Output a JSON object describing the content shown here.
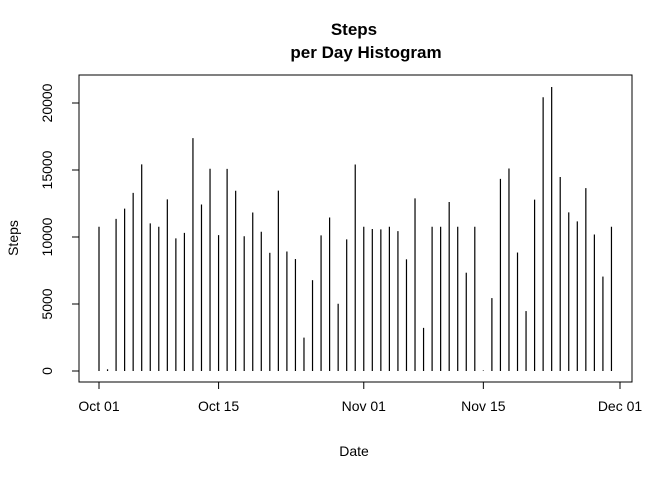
{
  "chart_data": {
    "type": "bar",
    "style": "histogram-spikes",
    "title": "Steps\nper Day Histogram",
    "title_lines": [
      "Steps",
      "per Day Histogram"
    ],
    "xlabel": "Date",
    "ylabel": "Steps",
    "xlim": [
      "2012-09-30",
      "2012-12-01"
    ],
    "ylim": [
      0,
      21194
    ],
    "x_ticks": [
      {
        "date": "2012-10-01",
        "label": "Oct 01"
      },
      {
        "date": "2012-10-15",
        "label": "Oct 15"
      },
      {
        "date": "2012-11-01",
        "label": "Nov 01"
      },
      {
        "date": "2012-11-15",
        "label": "Nov 15"
      },
      {
        "date": "2012-12-01",
        "label": "Dec 01"
      }
    ],
    "y_ticks": [
      0,
      5000,
      10000,
      15000,
      20000
    ],
    "grid": false,
    "bar_color": "#000000",
    "x": [
      "2012-10-01",
      "2012-10-02",
      "2012-10-03",
      "2012-10-04",
      "2012-10-05",
      "2012-10-06",
      "2012-10-07",
      "2012-10-08",
      "2012-10-09",
      "2012-10-10",
      "2012-10-11",
      "2012-10-12",
      "2012-10-13",
      "2012-10-14",
      "2012-10-15",
      "2012-10-16",
      "2012-10-17",
      "2012-10-18",
      "2012-10-19",
      "2012-10-20",
      "2012-10-21",
      "2012-10-22",
      "2012-10-23",
      "2012-10-24",
      "2012-10-25",
      "2012-10-26",
      "2012-10-27",
      "2012-10-28",
      "2012-10-29",
      "2012-10-30",
      "2012-10-31",
      "2012-11-01",
      "2012-11-02",
      "2012-11-03",
      "2012-11-04",
      "2012-11-05",
      "2012-11-06",
      "2012-11-07",
      "2012-11-08",
      "2012-11-09",
      "2012-11-10",
      "2012-11-11",
      "2012-11-12",
      "2012-11-13",
      "2012-11-14",
      "2012-11-15",
      "2012-11-16",
      "2012-11-17",
      "2012-11-18",
      "2012-11-19",
      "2012-11-20",
      "2012-11-21",
      "2012-11-22",
      "2012-11-23",
      "2012-11-24",
      "2012-11-25",
      "2012-11-26",
      "2012-11-27",
      "2012-11-28",
      "2012-11-29",
      "2012-11-30"
    ],
    "values": [
      10766,
      126,
      11352,
      12116,
      13294,
      15420,
      11015,
      10766,
      12811,
      9900,
      10304,
      17382,
      12426,
      15098,
      10139,
      15084,
      13452,
      10056,
      11829,
      10395,
      8821,
      13460,
      8918,
      8355,
      2492,
      6778,
      10119,
      11458,
      5018,
      9819,
      15414,
      10766,
      10600,
      10571,
      10766,
      10439,
      8334,
      12883,
      3219,
      10766,
      10766,
      12608,
      10765,
      7336,
      10766,
      41,
      5441,
      14339,
      15110,
      8841,
      4472,
      12787,
      20427,
      21194,
      14478,
      11834,
      11162,
      13646,
      10183,
      7047,
      10766
    ]
  }
}
